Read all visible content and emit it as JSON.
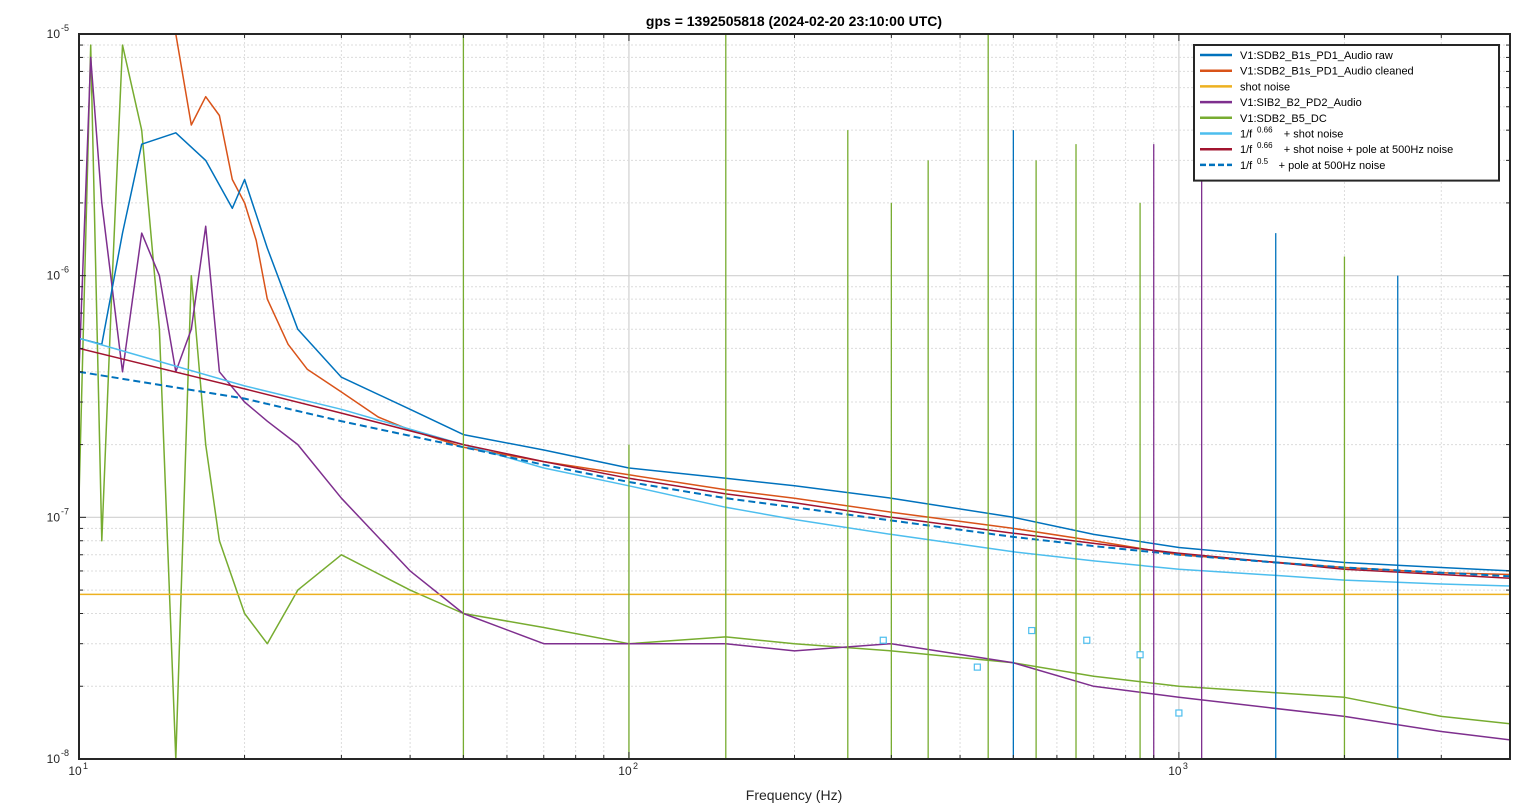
{
  "chart_data": {
    "type": "line",
    "title": "gps = 1392505818 (2024-02-20 23:10:00 UTC)",
    "xlabel": "Frequency (Hz)",
    "ylabel": "",
    "x_scale": "log",
    "y_scale": "log",
    "xlim": [
      10,
      4000
    ],
    "ylim": [
      1e-08,
      1e-05
    ],
    "grid": true,
    "minor_grid": true,
    "legend_position": "top-right",
    "x_ticks": [
      {
        "value": 10,
        "base": "10",
        "exp": "1"
      },
      {
        "value": 100,
        "base": "10",
        "exp": "2"
      },
      {
        "value": 1000,
        "base": "10",
        "exp": "3"
      }
    ],
    "y_ticks": [
      {
        "value": 1e-05,
        "base": "10",
        "exp": "-5"
      },
      {
        "value": 1e-06,
        "base": "10",
        "exp": "-6"
      },
      {
        "value": 1e-07,
        "base": "10",
        "exp": "-7"
      },
      {
        "value": 1e-08,
        "base": "10",
        "exp": "-8"
      }
    ],
    "series": [
      {
        "name": "V1:SDB2_B1s_PD1_Audio raw",
        "color": "#0072BD",
        "style": "solid",
        "x": [
          10,
          11,
          12,
          13,
          15,
          17,
          19,
          20,
          22,
          25,
          30,
          40,
          50,
          70,
          100,
          150,
          200,
          300,
          500,
          700,
          1000,
          2000,
          3000,
          4000
        ],
        "y": [
          5.5e-07,
          5.2e-07,
          1.5e-06,
          3.5e-06,
          3.9e-06,
          3e-06,
          1.9e-06,
          2.5e-06,
          1.3e-06,
          6e-07,
          3.8e-07,
          2.8e-07,
          2.2e-07,
          1.9e-07,
          1.6e-07,
          1.45e-07,
          1.35e-07,
          1.2e-07,
          1e-07,
          8.5e-08,
          7.5e-08,
          6.5e-08,
          6.2e-08,
          6e-08
        ]
      },
      {
        "name": "V1:SDB2_B1s_PD1_Audio cleaned",
        "color": "#D95319",
        "style": "solid",
        "x": [
          15,
          16,
          17,
          18,
          19,
          20,
          21,
          22,
          24,
          26,
          30,
          35,
          40,
          50,
          70,
          100,
          150,
          200,
          300,
          500,
          700,
          1000,
          2000,
          3000,
          4000
        ],
        "y": [
          1e-05,
          4.2e-06,
          5.5e-06,
          4.6e-06,
          2.5e-06,
          2e-06,
          1.4e-06,
          8e-07,
          5.2e-07,
          4.1e-07,
          3.3e-07,
          2.6e-07,
          2.3e-07,
          1.95e-07,
          1.7e-07,
          1.5e-07,
          1.3e-07,
          1.2e-07,
          1.05e-07,
          9e-08,
          8e-08,
          7e-08,
          6.2e-08,
          5.9e-08,
          5.8e-08
        ]
      },
      {
        "name": "shot noise",
        "color": "#EDB120",
        "style": "solid",
        "x": [
          10,
          4000
        ],
        "y": [
          4.8e-08,
          4.8e-08
        ]
      },
      {
        "name": "V1:SIB2_B2_PD2_Audio",
        "color": "#7E2F8E",
        "style": "solid",
        "x": [
          10,
          10.5,
          11,
          12,
          13,
          14,
          15,
          16,
          17,
          18,
          20,
          22,
          25,
          30,
          40,
          50,
          70,
          100,
          150,
          200,
          300,
          500,
          700,
          1000,
          2000,
          3000,
          4000
        ],
        "y": [
          4e-07,
          8e-06,
          2e-06,
          4e-07,
          1.5e-06,
          1e-06,
          4e-07,
          6e-07,
          1.6e-06,
          4e-07,
          3e-07,
          2.5e-07,
          2e-07,
          1.2e-07,
          6e-08,
          4e-08,
          3e-08,
          3e-08,
          3e-08,
          2.8e-08,
          3e-08,
          2.5e-08,
          2e-08,
          1.8e-08,
          1.5e-08,
          1.3e-08,
          1.2e-08
        ]
      },
      {
        "name": "V1:SDB2_B5_DC",
        "color": "#77AC30",
        "style": "solid",
        "x": [
          10,
          10.5,
          11,
          11.5,
          12,
          13,
          14,
          15,
          16,
          17,
          18,
          20,
          22,
          25,
          30,
          40,
          50,
          70,
          100,
          150,
          200,
          300,
          500,
          700,
          1000,
          2000,
          3000,
          4000
        ],
        "y": [
          1.2e-07,
          9e-06,
          8e-08,
          1e-06,
          9e-06,
          4e-06,
          6e-07,
          1e-08,
          1e-06,
          2e-07,
          8e-08,
          4e-08,
          3e-08,
          5e-08,
          7e-08,
          5e-08,
          4e-08,
          3.5e-08,
          3e-08,
          3.2e-08,
          3e-08,
          2.8e-08,
          2.5e-08,
          2.2e-08,
          2e-08,
          1.8e-08,
          1.5e-08,
          1.4e-08
        ]
      },
      {
        "name": "1/f^0.66 + shot noise",
        "legend_base": "1/f",
        "legend_exp": "0.66",
        "legend_rest": "+ shot noise",
        "color": "#4DBEEE",
        "style": "solid",
        "x": [
          10,
          20,
          30,
          50,
          70,
          100,
          150,
          200,
          300,
          500,
          700,
          1000,
          1500,
          2000,
          3000,
          4000
        ],
        "y": [
          5.5e-07,
          3.5e-07,
          2.8e-07,
          2e-07,
          1.6e-07,
          1.35e-07,
          1.1e-07,
          9.8e-08,
          8.5e-08,
          7.2e-08,
          6.6e-08,
          6.1e-08,
          5.75e-08,
          5.5e-08,
          5.3e-08,
          5.2e-08
        ]
      },
      {
        "name": "1/f^0.66 + shot noise + pole at 500Hz noise",
        "legend_base": "1/f",
        "legend_exp": "0.66",
        "legend_rest": "+ shot noise + pole at 500Hz noise",
        "color": "#A2142F",
        "style": "solid",
        "x": [
          10,
          20,
          30,
          50,
          70,
          100,
          150,
          200,
          300,
          500,
          700,
          1000,
          1500,
          2000,
          3000,
          4000
        ],
        "y": [
          5e-07,
          3.4e-07,
          2.7e-07,
          2e-07,
          1.7e-07,
          1.45e-07,
          1.25e-07,
          1.15e-07,
          1e-07,
          8.6e-08,
          7.8e-08,
          7.1e-08,
          6.5e-08,
          6.1e-08,
          5.8e-08,
          5.6e-08
        ]
      },
      {
        "name": "1/f^0.5 + pole at 500Hz noise",
        "legend_base": "1/f",
        "legend_exp": "0.5",
        "legend_rest": "+ pole at 500Hz noise",
        "color": "#0072BD",
        "style": "dashed",
        "x": [
          10,
          20,
          30,
          50,
          70,
          100,
          150,
          200,
          300,
          500,
          700,
          1000,
          1500,
          2000,
          3000,
          4000
        ],
        "y": [
          4e-07,
          3.1e-07,
          2.5e-07,
          1.95e-07,
          1.65e-07,
          1.4e-07,
          1.2e-07,
          1.1e-07,
          9.7e-08,
          8.3e-08,
          7.6e-08,
          7e-08,
          6.5e-08,
          6.2e-08,
          5.9e-08,
          5.7e-08
        ]
      }
    ],
    "peaks": [
      {
        "x": 50,
        "y": 1e-05,
        "color": "#77AC30"
      },
      {
        "x": 100,
        "y": 2e-07,
        "color": "#77AC30"
      },
      {
        "x": 150,
        "y": 1e-05,
        "color": "#77AC30"
      },
      {
        "x": 250,
        "y": 4e-06,
        "color": "#77AC30"
      },
      {
        "x": 300,
        "y": 2e-06,
        "color": "#77AC30"
      },
      {
        "x": 350,
        "y": 3e-06,
        "color": "#77AC30"
      },
      {
        "x": 450,
        "y": 1e-05,
        "color": "#77AC30"
      },
      {
        "x": 500,
        "y": 4e-06,
        "color": "#0072BD"
      },
      {
        "x": 550,
        "y": 3e-06,
        "color": "#77AC30"
      },
      {
        "x": 650,
        "y": 3.5e-06,
        "color": "#77AC30"
      },
      {
        "x": 850,
        "y": 2e-06,
        "color": "#77AC30"
      },
      {
        "x": 900,
        "y": 3.5e-06,
        "color": "#7E2F8E"
      },
      {
        "x": 1100,
        "y": 5e-06,
        "color": "#7E2F8E"
      },
      {
        "x": 1500,
        "y": 1.5e-06,
        "color": "#0072BD"
      },
      {
        "x": 2000,
        "y": 1.2e-06,
        "color": "#77AC30"
      },
      {
        "x": 2500,
        "y": 1e-06,
        "color": "#0072BD"
      }
    ],
    "markers": [
      {
        "x": 290,
        "y": 3.1e-08,
        "color": "#4DBEEE"
      },
      {
        "x": 430,
        "y": 2.4e-08,
        "color": "#4DBEEE"
      },
      {
        "x": 540,
        "y": 3.4e-08,
        "color": "#4DBEEE"
      },
      {
        "x": 680,
        "y": 3.1e-08,
        "color": "#4DBEEE"
      },
      {
        "x": 850,
        "y": 2.7e-08,
        "color": "#4DBEEE"
      },
      {
        "x": 1000,
        "y": 1.55e-08,
        "color": "#4DBEEE"
      }
    ]
  }
}
